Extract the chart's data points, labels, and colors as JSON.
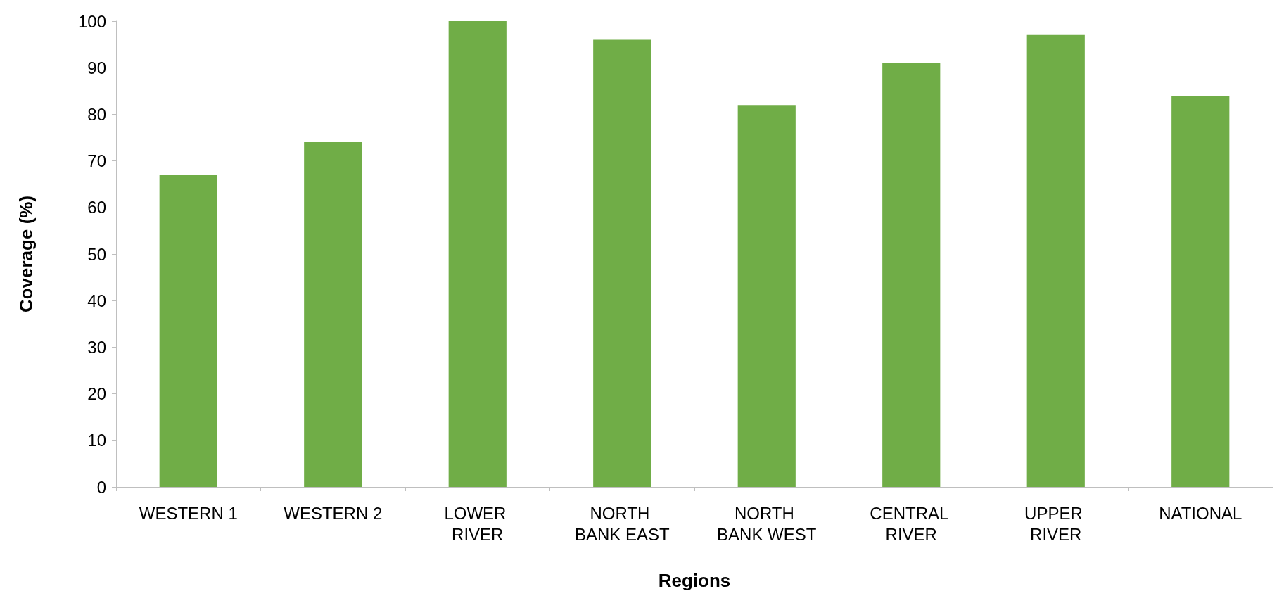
{
  "chart_data": {
    "type": "bar",
    "xlabel": "Regions",
    "ylabel": "Coverage (%)",
    "categories": [
      "WESTERN 1",
      "WESTERN 2",
      "LOWER RIVER",
      "NORTH BANK EAST",
      "NORTH BANK WEST",
      "CENTRAL RIVER",
      "UPPER RIVER",
      "NATIONAL"
    ],
    "values": [
      67,
      74,
      100,
      96,
      82,
      91,
      97,
      84
    ],
    "color": "#70ad47",
    "ylim": [
      0,
      100
    ],
    "yticks": [
      0,
      10,
      20,
      30,
      40,
      50,
      60,
      70,
      80,
      90,
      100
    ],
    "grid": false
  }
}
